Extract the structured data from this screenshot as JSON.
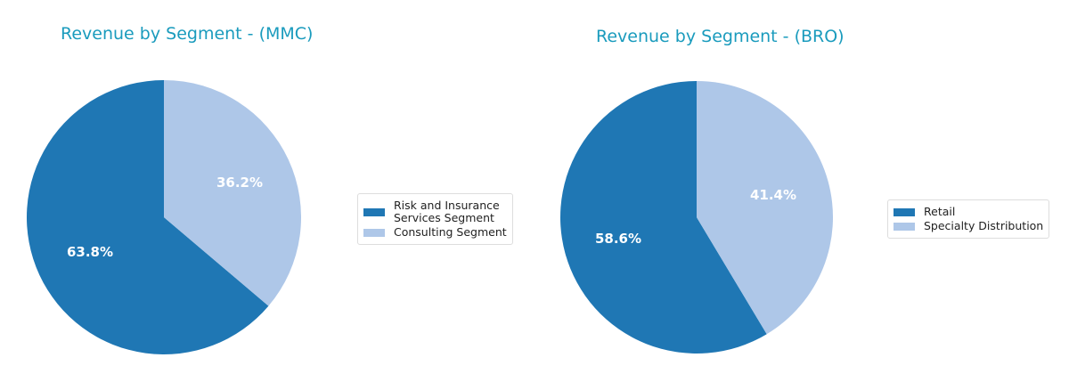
{
  "chart_data": [
    {
      "type": "pie",
      "title": "Revenue by Segment - (MMC)",
      "categories": [
        "Risk and Insurance Services Segment",
        "Consulting Segment"
      ],
      "values": [
        63.8,
        36.2
      ],
      "labels": [
        "63.8%",
        "36.2%"
      ],
      "colors": [
        "#1f77b4",
        "#aec7e8"
      ],
      "legend_position": "right"
    },
    {
      "type": "pie",
      "title": "Revenue by Segment - (BRO)",
      "categories": [
        "Retail",
        "Specialty Distribution"
      ],
      "values": [
        58.6,
        41.4
      ],
      "labels": [
        "58.6%",
        "41.4%"
      ],
      "colors": [
        "#1f77b4",
        "#aec7e8"
      ],
      "legend_position": "right"
    }
  ],
  "mmc": {
    "title": "Revenue by Segment - (MMC)",
    "legend": [
      "Risk and Insurance\nServices Segment",
      "Consulting Segment"
    ],
    "pct_dark": "63.8%",
    "pct_light": "36.2%"
  },
  "bro": {
    "title": "Revenue by Segment - (BRO)",
    "legend": [
      "Retail",
      "Specialty Distribution"
    ],
    "pct_dark": "58.6%",
    "pct_light": "41.4%"
  }
}
